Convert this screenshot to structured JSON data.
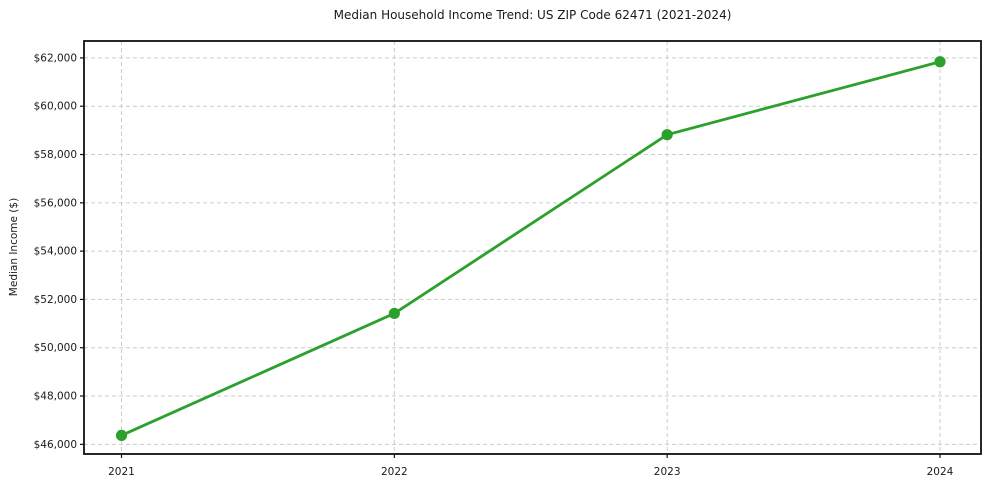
{
  "page_title": "Median Household Income Trend: US ZIP Code 62471 (2021-2024)",
  "chart_data": {
    "type": "line",
    "title": "Median Household Income Trend: US ZIP Code 62471 (2021-2024)",
    "xlabel": "",
    "ylabel": "Median Income ($)",
    "categories": [
      "2021",
      "2022",
      "2023",
      "2024"
    ],
    "series": [
      {
        "name": "Median Household Income",
        "values": [
          46370,
          51420,
          58820,
          61840
        ]
      }
    ],
    "ylim": [
      45600,
      62700
    ],
    "yticks": [
      46000,
      48000,
      50000,
      52000,
      54000,
      56000,
      58000,
      60000,
      62000
    ],
    "ytick_labels": [
      "$46,000",
      "$48,000",
      "$50,000",
      "$52,000",
      "$54,000",
      "$56,000",
      "$58,000",
      "$60,000",
      "$62,000"
    ],
    "grid": true,
    "grid_style": "dashed",
    "legend": "none",
    "colors": {
      "line": "#2ca02c",
      "marker": "#2ca02c",
      "grid": "#cccccc",
      "spine": "#111111",
      "text": "#1a1a1a",
      "background": "#ffffff"
    }
  }
}
